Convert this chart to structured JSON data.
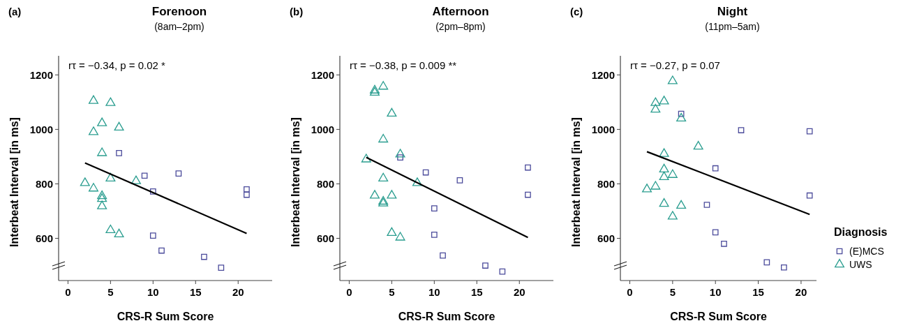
{
  "chart_data": [
    {
      "type": "scatter",
      "title": "Forenoon",
      "subtitle": "(8am–2pm)",
      "xlabel": "CRS-R Sum Score",
      "ylabel": "Interbeat Interval [in ms]",
      "annotations": [
        "(a)",
        "rτ = −0.34, p = 0.02 *"
      ],
      "xlim": [
        -1.1,
        24
      ],
      "xticks": [
        0,
        5,
        10,
        15,
        20
      ],
      "ylim": [
        445,
        1270
      ],
      "yticks": [
        600,
        800,
        1000,
        1200
      ],
      "grid": false,
      "legend": false,
      "series": [
        {
          "color": "#4b4b9b",
          "marker": "square",
          "x": [
            6,
            9,
            13,
            10,
            21,
            21,
            10,
            11,
            16,
            18
          ],
          "values": [
            913,
            830,
            838,
            772,
            780,
            760,
            610,
            555,
            532,
            492
          ]
        },
        {
          "color": "#2a9d8f",
          "marker": "triangle",
          "x": [
            3,
            5,
            4,
            3,
            6,
            4,
            5,
            2,
            3,
            8,
            4,
            4,
            4,
            5,
            6
          ],
          "values": [
            1105,
            1097,
            1023,
            990,
            1007,
            913,
            820,
            803,
            783,
            810,
            755,
            745,
            718,
            630,
            615
          ]
        },
        {
          "type": "line",
          "color": "#000000",
          "marker": "none",
          "x": [
            2,
            21
          ],
          "values": [
            877,
            618
          ]
        }
      ]
    },
    {
      "type": "scatter",
      "title": "Afternoon",
      "subtitle": "(2pm–8pm)",
      "xlabel": "CRS-R Sum Score",
      "ylabel": "Interbeat Interval [in ms]",
      "annotations": [
        "(b)",
        "rτ = −0.38, p = 0.009 **"
      ],
      "xlim": [
        -1.1,
        24
      ],
      "xticks": [
        0,
        5,
        10,
        15,
        20
      ],
      "ylim": [
        445,
        1270
      ],
      "yticks": [
        600,
        800,
        1000,
        1200
      ],
      "grid": false,
      "legend": false,
      "series": [
        {
          "color": "#4b4b9b",
          "marker": "square",
          "x": [
            6,
            9,
            13,
            21,
            21,
            10,
            10,
            11,
            16,
            18
          ],
          "values": [
            897,
            842,
            813,
            860,
            760,
            710,
            613,
            537,
            500,
            478
          ]
        },
        {
          "color": "#2a9d8f",
          "marker": "triangle",
          "x": [
            3,
            3,
            4,
            5,
            4,
            6,
            2,
            4,
            8,
            3,
            5,
            4,
            4,
            5,
            6
          ],
          "values": [
            1143,
            1135,
            1157,
            1058,
            963,
            908,
            890,
            820,
            803,
            757,
            757,
            735,
            728,
            620,
            603
          ]
        },
        {
          "type": "line",
          "color": "#000000",
          "marker": "none",
          "x": [
            2,
            21
          ],
          "values": [
            897,
            603
          ]
        }
      ]
    },
    {
      "type": "scatter",
      "title": "Night",
      "subtitle": "(11pm–5am)",
      "xlabel": "CRS-R Sum Score",
      "ylabel": "Interbeat Interval [in ms]",
      "annotations": [
        "(c)",
        "rτ = −0.27, p = 0.07"
      ],
      "xlim": [
        -1.1,
        21.8
      ],
      "xticks": [
        0,
        5,
        10,
        15,
        20
      ],
      "ylim": [
        445,
        1270
      ],
      "yticks": [
        600,
        800,
        1000,
        1200
      ],
      "grid": false,
      "legend": "right",
      "legend_title": "Diagnosis",
      "series": [
        {
          "name": "(E)MCS",
          "color": "#4b4b9b",
          "marker": "square",
          "x": [
            6,
            13,
            21,
            10,
            21,
            9,
            10,
            11,
            16,
            18
          ],
          "values": [
            1057,
            997,
            993,
            857,
            757,
            723,
            622,
            580,
            512,
            493
          ]
        },
        {
          "name": "UWS",
          "color": "#2a9d8f",
          "marker": "triangle",
          "x": [
            5,
            3,
            4,
            3,
            6,
            8,
            4,
            4,
            4,
            5,
            2,
            3,
            4,
            6,
            5
          ],
          "values": [
            1177,
            1097,
            1103,
            1073,
            1040,
            937,
            910,
            853,
            825,
            833,
            780,
            790,
            727,
            720,
            680
          ]
        },
        {
          "type": "line",
          "color": "#000000",
          "marker": "none",
          "x": [
            2,
            21
          ],
          "values": [
            918,
            688
          ]
        }
      ]
    }
  ]
}
